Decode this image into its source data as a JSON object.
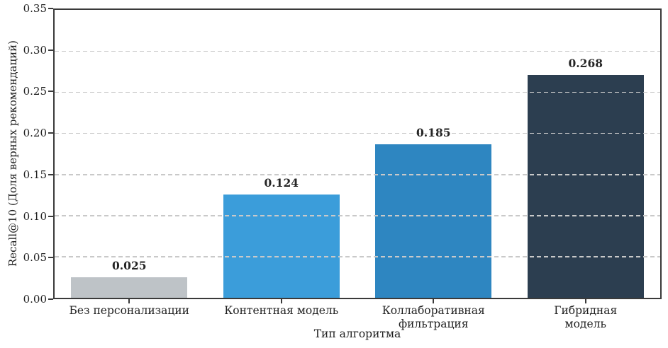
{
  "chart_data": {
    "type": "bar",
    "title": "",
    "xlabel": "Тип алгоритма",
    "ylabel": "Recall@10 (Доля верных рекомендаций)",
    "categories": [
      "Без персонализации",
      "Контентная модель",
      "Коллаборативная фильтрация",
      "Гибридная модель"
    ],
    "values": [
      0.025,
      0.124,
      0.185,
      0.268
    ],
    "value_labels": [
      "0.025",
      "0.124",
      "0.185",
      "0.268"
    ],
    "bar_colors": [
      "#bec3c7",
      "#3b9dda",
      "#2e86c1",
      "#2c3e50"
    ],
    "ylim": [
      0,
      0.35
    ],
    "yticks": [
      0,
      0.05,
      0.1,
      0.15,
      0.2,
      0.25,
      0.3,
      0.35
    ],
    "ytick_labels": [
      "0.00",
      "0.05",
      "0.10",
      "0.15",
      "0.20",
      "0.25",
      "0.30",
      "0.35"
    ],
    "grid": "horizontal-dashed-above-bars",
    "legend": "none",
    "bar_width_fraction": 0.765,
    "colors": {
      "grid": "#c9c9c9",
      "spine": "#3a3a3a",
      "text": "#1f1f1f",
      "value_label": "#262626",
      "background": "#ffffff"
    }
  }
}
